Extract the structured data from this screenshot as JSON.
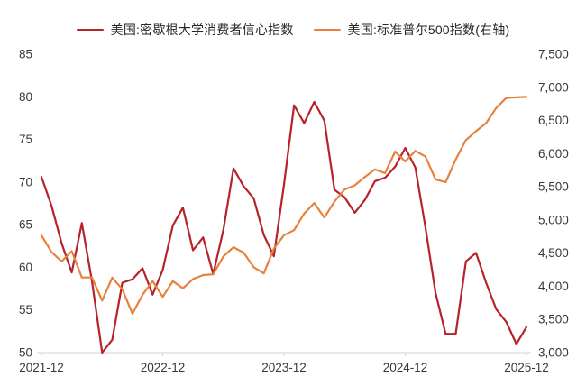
{
  "chart_data": {
    "type": "line",
    "title": "",
    "legend_position": "top-center",
    "grid": false,
    "background": "#ffffff",
    "x": [
      "2021-12",
      "2022-01",
      "2022-02",
      "2022-03",
      "2022-04",
      "2022-05",
      "2022-06",
      "2022-07",
      "2022-08",
      "2022-09",
      "2022-10",
      "2022-11",
      "2022-12",
      "2023-01",
      "2023-02",
      "2023-03",
      "2023-04",
      "2023-05",
      "2023-06",
      "2023-07",
      "2023-08",
      "2023-09",
      "2023-10",
      "2023-11",
      "2023-12",
      "2024-01",
      "2024-02",
      "2024-03",
      "2024-04",
      "2024-05",
      "2024-06",
      "2024-07",
      "2024-08",
      "2024-09",
      "2024-10",
      "2024-11",
      "2024-12",
      "2025-01",
      "2025-02",
      "2025-03",
      "2025-04",
      "2025-05",
      "2025-06",
      "2025-07",
      "2025-08",
      "2025-09",
      "2025-10",
      "2025-11",
      "2025-12"
    ],
    "x_tick_labels": [
      "2021-12",
      "2022-12",
      "2023-12",
      "2024-12",
      "2025-12"
    ],
    "y_left": {
      "min": 50,
      "max": 85,
      "tick_step": 5
    },
    "y_right": {
      "min": 3000,
      "max": 7500,
      "tick_step": 500
    },
    "axis_line_color": "#d2d2d2",
    "series": [
      {
        "name": "美国:密歇根大学消费者信心指数",
        "axis": "left",
        "color": "#b5242a",
        "values": [
          70.6,
          67.2,
          62.8,
          59.4,
          65.2,
          58.4,
          50.0,
          51.5,
          58.2,
          58.6,
          59.9,
          56.8,
          59.7,
          64.9,
          67.0,
          62.0,
          63.5,
          59.2,
          64.4,
          71.6,
          69.5,
          68.1,
          63.8,
          61.3,
          69.7,
          79.0,
          76.9,
          79.4,
          77.2,
          69.1,
          68.2,
          66.4,
          67.9,
          70.1,
          70.5,
          71.8,
          74.0,
          71.7,
          64.7,
          57.0,
          52.2,
          52.2,
          60.7,
          61.7,
          58.2,
          55.1,
          53.6,
          51.0,
          53.0
        ]
      },
      {
        "name": "美国:标准普尔500指数(右轴)",
        "axis": "right",
        "color": "#e6823e",
        "values": [
          4766,
          4516,
          4374,
          4530,
          4132,
          4132,
          3785,
          4130,
          3955,
          3586,
          3872,
          4080,
          3840,
          4077,
          3970,
          4109,
          4169,
          4180,
          4450,
          4589,
          4508,
          4288,
          4194,
          4568,
          4770,
          4846,
          5096,
          5254,
          5036,
          5278,
          5460,
          5522,
          5648,
          5762,
          5705,
          6032,
          5882,
          6041,
          5955,
          5612,
          5569,
          5912,
          6205,
          6339,
          6460,
          6688,
          6840,
          6849,
          6855
        ]
      }
    ]
  }
}
